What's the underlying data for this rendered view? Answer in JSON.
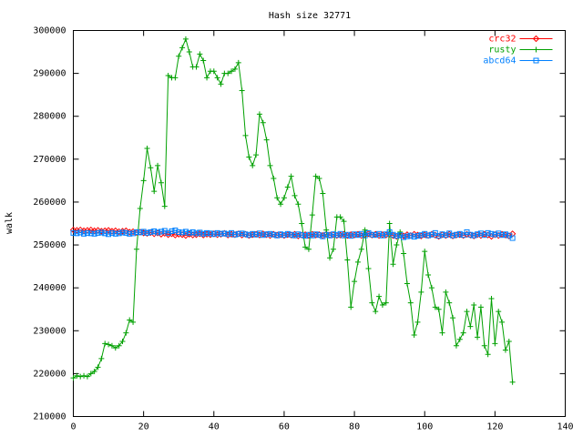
{
  "chart_data": {
    "type": "line",
    "title": "Hash size 32771",
    "y_label": "walk",
    "legend": "top right",
    "grid": false,
    "xlim": [
      0,
      140
    ],
    "xticks": [
      0,
      20,
      40,
      60,
      80,
      100,
      120,
      140
    ],
    "ylim": [
      210000,
      300000
    ],
    "yticks": [
      210000,
      220000,
      230000,
      240000,
      250000,
      260000,
      270000,
      280000,
      290000,
      300000
    ],
    "x": [
      0,
      1,
      2,
      3,
      4,
      5,
      6,
      7,
      8,
      9,
      10,
      11,
      12,
      13,
      14,
      15,
      16,
      17,
      18,
      19,
      20,
      21,
      22,
      23,
      24,
      25,
      26,
      27,
      28,
      29,
      30,
      31,
      32,
      33,
      34,
      35,
      36,
      37,
      38,
      39,
      40,
      41,
      42,
      43,
      44,
      45,
      46,
      47,
      48,
      49,
      50,
      51,
      52,
      53,
      54,
      55,
      56,
      57,
      58,
      59,
      60,
      61,
      62,
      63,
      64,
      65,
      66,
      67,
      68,
      69,
      70,
      71,
      72,
      73,
      74,
      75,
      76,
      77,
      78,
      79,
      80,
      81,
      82,
      83,
      84,
      85,
      86,
      87,
      88,
      89,
      90,
      91,
      92,
      93,
      94,
      95,
      96,
      97,
      98,
      99,
      100,
      101,
      102,
      103,
      104,
      105,
      106,
      107,
      108,
      109,
      110,
      111,
      112,
      113,
      114,
      115,
      116,
      117,
      118,
      119,
      120,
      121,
      122,
      123,
      124,
      125
    ],
    "series": [
      {
        "name": "crc32",
        "color": "#ff0000",
        "marker": "diamond",
        "values": [
          253500,
          253400,
          253500,
          253300,
          253400,
          253500,
          253300,
          253400,
          253200,
          253300,
          253400,
          253200,
          253300,
          253100,
          253200,
          253300,
          253000,
          253100,
          252900,
          253000,
          252800,
          252700,
          252900,
          252600,
          252800,
          252500,
          252700,
          252400,
          252600,
          252300,
          252500,
          252400,
          252200,
          252500,
          252300,
          252400,
          252600,
          252300,
          252500,
          252400,
          252600,
          252400,
          252500,
          252700,
          252300,
          252500,
          252400,
          252600,
          252300,
          252500,
          252200,
          252400,
          252500,
          252300,
          252600,
          252400,
          252200,
          252500,
          252300,
          252400,
          252200,
          252400,
          252300,
          252500,
          252100,
          252300,
          252400,
          252200,
          252500,
          252300,
          252400,
          252200,
          252500,
          252300,
          252400,
          252200,
          252300,
          252500,
          252200,
          252400,
          252300,
          252500,
          252200,
          252400,
          252600,
          252300,
          252500,
          252200,
          252400,
          252300,
          252500,
          252200,
          252000,
          252300,
          252100,
          252400,
          252200,
          252500,
          252300,
          252100,
          252400,
          252200,
          252500,
          252300,
          252000,
          252400,
          252200,
          252500,
          252100,
          252300,
          252400,
          252200,
          252500,
          252300,
          252100,
          252400,
          252200,
          252500,
          252300,
          252000,
          252400,
          252200,
          252500,
          252300,
          252100,
          252600
        ]
      },
      {
        "name": "rusty",
        "color": "#00a000",
        "marker": "plus",
        "values": [
          219000,
          219500,
          219300,
          219500,
          219300,
          220000,
          220500,
          221500,
          223500,
          227000,
          226800,
          226500,
          226000,
          226500,
          227500,
          229500,
          232500,
          232000,
          249000,
          258500,
          265000,
          272500,
          268000,
          262500,
          268500,
          264500,
          259000,
          289500,
          289000,
          289000,
          294000,
          296000,
          298000,
          295000,
          291500,
          291500,
          294500,
          293000,
          289000,
          290500,
          290500,
          289000,
          287500,
          290000,
          290000,
          290500,
          291000,
          292500,
          286000,
          275500,
          270500,
          268500,
          271000,
          280500,
          278500,
          274500,
          268500,
          265500,
          261000,
          259500,
          261000,
          263500,
          266000,
          261500,
          259500,
          255000,
          249500,
          249000,
          257000,
          266000,
          265500,
          262000,
          253500,
          247000,
          249000,
          256500,
          256500,
          255500,
          246500,
          235500,
          241500,
          246000,
          249000,
          253500,
          244500,
          236500,
          234500,
          238000,
          236000,
          236500,
          255000,
          245500,
          250000,
          253000,
          248000,
          241000,
          236500,
          229000,
          232000,
          239000,
          248500,
          243000,
          240000,
          235500,
          235000,
          229500,
          239000,
          236500,
          233000,
          226500,
          228000,
          229500,
          234500,
          231000,
          236000,
          228500,
          235500,
          226500,
          224500,
          237500,
          227000,
          234500,
          232000,
          225500,
          227500,
          218000
        ]
      },
      {
        "name": "abcd64",
        "color": "#0080ff",
        "marker": "square",
        "values": [
          252800,
          252700,
          252900,
          252600,
          252800,
          252700,
          252600,
          252800,
          252900,
          252700,
          252500,
          252800,
          252600,
          252700,
          252900,
          252800,
          252600,
          252700,
          253000,
          252900,
          253100,
          252800,
          253000,
          253200,
          252900,
          253100,
          253300,
          252800,
          253200,
          253400,
          253000,
          252900,
          253100,
          252800,
          253000,
          252700,
          252900,
          252600,
          252800,
          252700,
          252500,
          252800,
          252600,
          252700,
          252500,
          252800,
          252400,
          252600,
          252700,
          252500,
          252300,
          252600,
          252400,
          252700,
          252300,
          252500,
          252600,
          252400,
          252200,
          252500,
          252300,
          252600,
          252400,
          252200,
          252500,
          252300,
          252100,
          252400,
          252200,
          252500,
          252300,
          252000,
          252400,
          252200,
          252500,
          252300,
          252600,
          252200,
          252400,
          252100,
          252500,
          252300,
          252600,
          252200,
          252800,
          252400,
          252300,
          252600,
          252200,
          252500,
          253000,
          252400,
          252100,
          252300,
          251800,
          252000,
          252200,
          251900,
          252100,
          252300,
          252600,
          252200,
          252400,
          252800,
          252100,
          252500,
          252300,
          252700,
          252200,
          252400,
          252600,
          252300,
          253000,
          252400,
          252200,
          252500,
          252700,
          252300,
          252800,
          252600,
          252400,
          252700,
          252300,
          252500,
          252200,
          251600
        ]
      }
    ]
  }
}
